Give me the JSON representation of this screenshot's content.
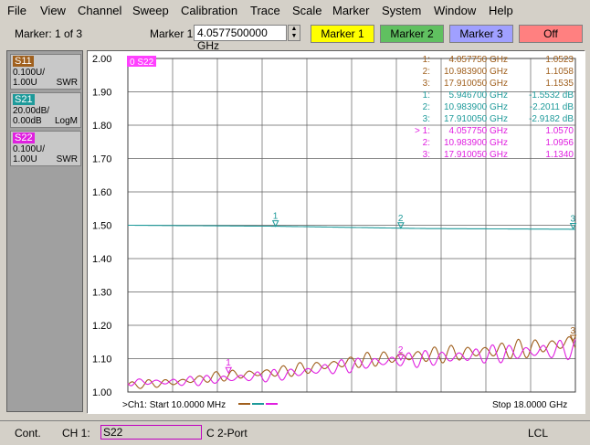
{
  "menu": [
    "File",
    "View",
    "Channel",
    "Sweep",
    "Calibration",
    "Trace",
    "Scale",
    "Marker",
    "System",
    "Window",
    "Help"
  ],
  "toolbar": {
    "marker_count": "Marker: 1 of 3",
    "marker_label": "Marker 1",
    "marker_value": "4.0577500000 GHz",
    "buttons": [
      {
        "label": "Marker 1",
        "color": "#ffff00"
      },
      {
        "label": "Marker 2",
        "color": "#60c060"
      },
      {
        "label": "Marker 3",
        "color": "#a0a0ff"
      },
      {
        "label": "Off",
        "color": "#ff8080"
      }
    ]
  },
  "traces": [
    {
      "name": "S11",
      "scale": "0.100U/",
      "ref": "1.00U",
      "format": "SWR",
      "color": "#a0601e"
    },
    {
      "name": "S21",
      "scale": "20.00dB/",
      "ref": "0.00dB",
      "format": "LogM",
      "color": "#1e9a9a"
    },
    {
      "name": "S22",
      "scale": "0.100U/",
      "ref": "1.00U",
      "format": "SWR",
      "color": "#e020e0"
    }
  ],
  "chart_data": {
    "type": "line",
    "active_trace_label": "0 S22",
    "ylim": [
      1.0,
      2.0
    ],
    "yticks": [
      "2.00",
      "1.90",
      "1.80",
      "1.70",
      "1.60",
      "1.50",
      "1.40",
      "1.30",
      "1.20",
      "1.10",
      "1.00"
    ],
    "x_range_ghz": [
      0.01,
      18.0
    ],
    "start_label": ">Ch1: Start  10.0000 MHz",
    "stop_label": "Stop  18.0000 GHz",
    "markers_table": [
      {
        "trace": "S11",
        "marker": "1:",
        "freq": "4.057750 GHz",
        "value": "1.0523"
      },
      {
        "trace": "S11",
        "marker": "2:",
        "freq": "10.983900 GHz",
        "value": "1.1058"
      },
      {
        "trace": "S11",
        "marker": "3:",
        "freq": "17.910050 GHz",
        "value": "1.1535"
      },
      {
        "trace": "S21",
        "marker": "1:",
        "freq": "5.946700 GHz",
        "value": "-1.5532 dB"
      },
      {
        "trace": "S21",
        "marker": "2:",
        "freq": "10.983900 GHz",
        "value": "-2.2011 dB"
      },
      {
        "trace": "S21",
        "marker": "3:",
        "freq": "17.910050 GHz",
        "value": "-2.9182 dB"
      },
      {
        "trace": "S22",
        "marker": "> 1:",
        "freq": "4.057750 GHz",
        "value": "1.0570"
      },
      {
        "trace": "S22",
        "marker": "2:",
        "freq": "10.983900 GHz",
        "value": "1.0956"
      },
      {
        "trace": "S22",
        "marker": "3:",
        "freq": "17.910050 GHz",
        "value": "1.1340"
      }
    ],
    "series": [
      {
        "name": "S11",
        "color": "#a0601e",
        "x": [
          0.01,
          2,
          4,
          6,
          8,
          10,
          12,
          14,
          16,
          18
        ],
        "y": [
          1.02,
          1.03,
          1.05,
          1.06,
          1.08,
          1.1,
          1.11,
          1.12,
          1.13,
          1.15
        ]
      },
      {
        "name": "S21",
        "color": "#1e9a9a",
        "x": [
          0.01,
          6,
          12,
          18
        ],
        "y": [
          1.5,
          1.497,
          1.49,
          1.488
        ]
      },
      {
        "name": "S22",
        "color": "#e020e0",
        "x": [
          0.01,
          2,
          4,
          6,
          8,
          10,
          12,
          14,
          16,
          18
        ],
        "y": [
          1.03,
          1.03,
          1.04,
          1.05,
          1.07,
          1.09,
          1.1,
          1.11,
          1.12,
          1.13
        ]
      }
    ],
    "marker_points": [
      {
        "series": "S21",
        "label": "1",
        "x": 5.9467,
        "y": 1.497
      },
      {
        "series": "S21",
        "label": "2",
        "x": 10.9839,
        "y": 1.491
      },
      {
        "series": "S21",
        "label": "3",
        "x": 17.91,
        "y": 1.489
      },
      {
        "series": "S11",
        "label": "3",
        "x": 17.91,
        "y": 1.1535
      },
      {
        "series": "S22",
        "label": "1",
        "x": 4.05775,
        "y": 1.057
      },
      {
        "series": "S22",
        "label": "2",
        "x": 10.9839,
        "y": 1.0956
      }
    ]
  },
  "status": {
    "mode": "Cont.",
    "channel": "CH 1:",
    "active": "S22",
    "cal": "C  2-Port",
    "remote": "LCL"
  }
}
